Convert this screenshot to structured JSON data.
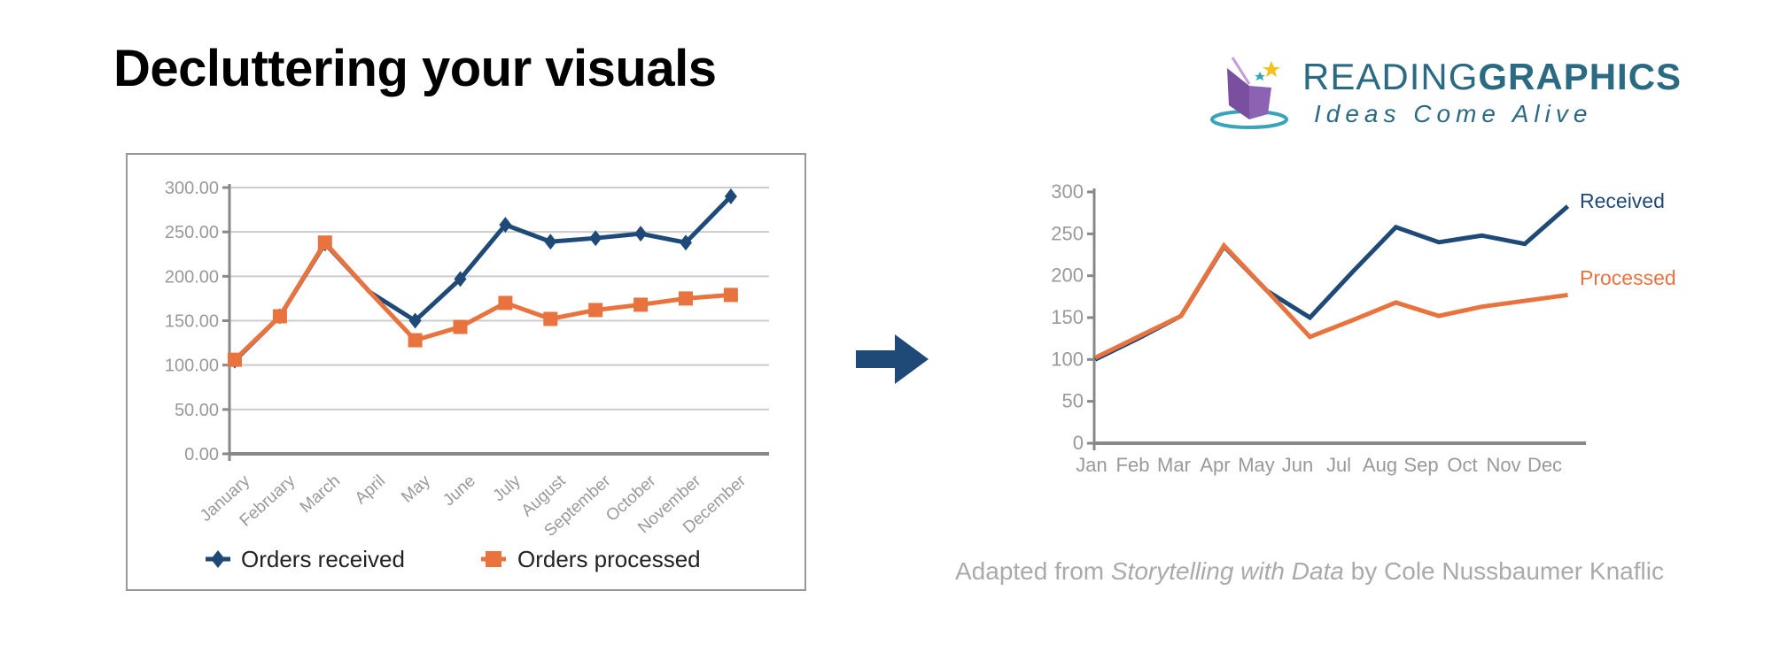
{
  "title": "Decluttering your visuals",
  "logo": {
    "brand_light": "READING",
    "brand_bold": "GRAPHICS",
    "tagline": "Ideas Come Alive"
  },
  "caption": {
    "prefix": "Adapted from ",
    "book": "Storytelling with Data",
    "suffix": " by Cole Nussbaumer Knaflic"
  },
  "colors": {
    "received": "#1f4a78",
    "processed": "#e8733f",
    "axis": "#888888",
    "grid": "#cccccc",
    "tick_text": "#999999"
  },
  "chart_data": [
    {
      "type": "line",
      "title": "",
      "categories": [
        "January",
        "February",
        "March",
        "April",
        "May",
        "June",
        "July",
        "August",
        "September",
        "October",
        "November",
        "December"
      ],
      "ytick_labels": [
        "0.00",
        "50.00",
        "100.00",
        "150.00",
        "200.00",
        "250.00",
        "300.00"
      ],
      "ylim": [
        0,
        300
      ],
      "grid": true,
      "legend": "bottom",
      "markers": true,
      "series": [
        {
          "name": "Orders received",
          "marker": "diamond",
          "values": [
            105,
            155,
            237,
            182,
            150,
            197,
            258,
            239,
            243,
            248,
            238,
            290
          ]
        },
        {
          "name": "Orders processed",
          "marker": "square",
          "values": [
            106,
            155,
            238,
            182,
            128,
            143,
            170,
            152,
            162,
            168,
            175,
            179
          ]
        }
      ]
    },
    {
      "type": "line",
      "title": "",
      "categories": [
        "Jan",
        "Feb",
        "Mar",
        "Apr",
        "May",
        "Jun",
        "Jul",
        "Aug",
        "Sep",
        "Oct",
        "Nov",
        "Dec"
      ],
      "ytick_labels": [
        "0",
        "50",
        "100",
        "150",
        "200",
        "250",
        "300"
      ],
      "ylim": [
        0,
        300
      ],
      "grid": false,
      "legend": "direct labels at line ends",
      "markers": false,
      "series": [
        {
          "name": "Received",
          "values": [
            100,
            125,
            152,
            235,
            182,
            150,
            205,
            258,
            240,
            248,
            238,
            283
          ]
        },
        {
          "name": "Processed",
          "values": [
            102,
            127,
            152,
            236,
            182,
            127,
            147,
            168,
            152,
            163,
            170,
            177
          ]
        }
      ]
    }
  ]
}
